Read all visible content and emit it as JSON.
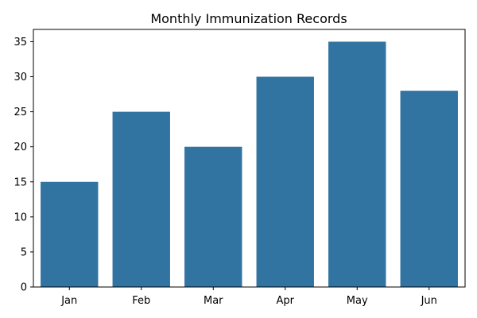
{
  "chart_data": {
    "type": "bar",
    "title": "Monthly Immunization Records",
    "xlabel": "",
    "ylabel": "",
    "categories": [
      "Jan",
      "Feb",
      "Mar",
      "Apr",
      "May",
      "Jun"
    ],
    "values": [
      15,
      25,
      20,
      30,
      35,
      28
    ],
    "ylim": [
      0,
      36.75
    ],
    "yticks": [
      0,
      5,
      10,
      15,
      20,
      25,
      30,
      35
    ],
    "grid": false,
    "bar_color": "#3274a1"
  }
}
